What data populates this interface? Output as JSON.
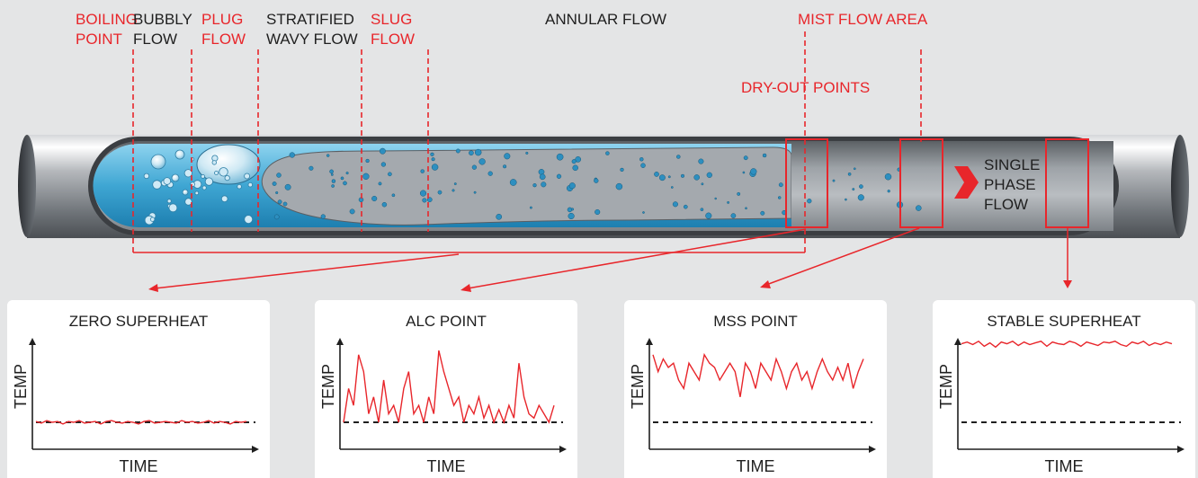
{
  "labels": {
    "boiling_point": [
      "BOILING",
      "POINT"
    ],
    "bubbly_flow": [
      "BUBBLY",
      "FLOW"
    ],
    "plug_flow": [
      "PLUG",
      "FLOW"
    ],
    "stratified_wavy_flow": [
      "STRATIFIED",
      "WAVY FLOW"
    ],
    "slug_flow": [
      "SLUG",
      "FLOW"
    ],
    "annular_flow": "ANNULAR FLOW",
    "mist_flow_area": "MIST FLOW AREA",
    "dry_out_points": "DRY-OUT POINTS",
    "single_phase_flow": [
      "SINGLE",
      "PHASE",
      "FLOW"
    ]
  },
  "colors": {
    "accent_red": "#e8262b",
    "liquid_blue": "#3aa7d4",
    "pipe_gray": "#8e9399",
    "background": "#e4e5e6"
  },
  "panels": [
    {
      "title": "ZERO SUPERHEAT",
      "ylabel": "TEMP",
      "xlabel": "TIME"
    },
    {
      "title": "ALC POINT",
      "ylabel": "TEMP",
      "xlabel": "TIME"
    },
    {
      "title": "MSS POINT",
      "ylabel": "TEMP",
      "xlabel": "TIME"
    },
    {
      "title": "STABLE SUPERHEAT",
      "ylabel": "TEMP",
      "xlabel": "TIME"
    }
  ],
  "chart_data": [
    {
      "type": "line",
      "title": "ZERO SUPERHEAT",
      "xlabel": "TIME",
      "ylabel": "TEMP",
      "ylim": [
        0,
        10
      ],
      "baseline": 0,
      "series": [
        {
          "values": [
            0.1,
            -0.1,
            0.2,
            0,
            0.1,
            -0.2,
            0.1,
            0,
            0.2,
            -0.1,
            0,
            0.1,
            -0.2,
            0.1,
            0.2,
            0,
            -0.1,
            0.1,
            0,
            -0.2,
            0.1,
            0.2,
            -0.1,
            0,
            0.1,
            0,
            -0.1,
            0.2,
            0,
            0.1,
            -0.1,
            0,
            0.2,
            -0.1,
            0.1,
            0,
            -0.2,
            0.1,
            0,
            0.1
          ]
        }
      ]
    },
    {
      "type": "line",
      "title": "ALC POINT",
      "xlabel": "TIME",
      "ylabel": "TEMP",
      "ylim": [
        0,
        10
      ],
      "baseline": 0,
      "series": [
        {
          "values": [
            0,
            4,
            2,
            8,
            6,
            1,
            3,
            0,
            5,
            1,
            2,
            0,
            4,
            6,
            1,
            2,
            0,
            3,
            1,
            8.5,
            6,
            4,
            2,
            3,
            0,
            2,
            1,
            3,
            0.5,
            2,
            0,
            1.5,
            0,
            2,
            0.5,
            7,
            3,
            1,
            0.5,
            2,
            1,
            0,
            2
          ]
        }
      ]
    },
    {
      "type": "line",
      "title": "MSS POINT",
      "xlabel": "TIME",
      "ylabel": "TEMP",
      "ylim": [
        0,
        10
      ],
      "baseline": 0,
      "series": [
        {
          "values": [
            8,
            6,
            7.5,
            6.5,
            7,
            5,
            4,
            7,
            6,
            5,
            8,
            7,
            6.5,
            5,
            6,
            7,
            6,
            3,
            7,
            6,
            4,
            7,
            6,
            5,
            7.5,
            6,
            4,
            6,
            7,
            5,
            6,
            4,
            6,
            7.5,
            6,
            5,
            6.5,
            5,
            7,
            4,
            6,
            7.5
          ]
        }
      ]
    },
    {
      "type": "line",
      "title": "STABLE SUPERHEAT",
      "xlabel": "TIME",
      "ylabel": "TEMP",
      "ylim": [
        0,
        10
      ],
      "baseline": 0,
      "series": [
        {
          "values": [
            9.3,
            9.5,
            9.2,
            9.6,
            9.0,
            9.4,
            8.9,
            9.5,
            9.3,
            9.6,
            9.1,
            9.5,
            9.2,
            9.4,
            9.6,
            9.0,
            9.5,
            9.3,
            9.2,
            9.6,
            9.4,
            9.0,
            9.5,
            9.3,
            9.1,
            9.5,
            9.4,
            9.6,
            9.2,
            9.0,
            9.5,
            9.3,
            9.6,
            9.1,
            9.4,
            9.2,
            9.5,
            9.3
          ]
        }
      ]
    }
  ]
}
